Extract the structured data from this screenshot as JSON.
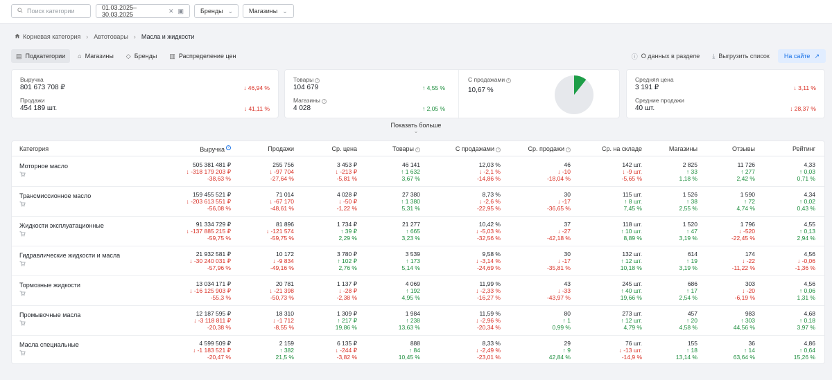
{
  "topbar": {
    "search_placeholder": "Поиск категории",
    "date_range": "01.03.2025–30.03.2025",
    "brands_label": "Бренды",
    "shops_label": "Магазины"
  },
  "breadcrumbs": [
    "Корневая категория",
    "Автотовары",
    "Масла и жидкости"
  ],
  "tabs": [
    "Подкатегории",
    "Магазины",
    "Бренды",
    "Распределение цен"
  ],
  "actions": {
    "about": "О данных в разделе",
    "export": "Выгрузить список",
    "site": "На сайте"
  },
  "cards": {
    "revenue": {
      "label": "Выручка",
      "value": "801 673 708 ₽",
      "delta": "↓ 46,94 %"
    },
    "sales": {
      "label": "Продажи",
      "value": "454 189 шт.",
      "delta": "↓ 41,11 %"
    },
    "goods": {
      "label": "Товары",
      "value": "104 679",
      "delta": "↑ 4,55 %"
    },
    "shops": {
      "label": "Магазины",
      "value": "4 028",
      "delta": "↑ 2,05 %"
    },
    "with_sales": {
      "label": "С продажами",
      "value": "10,67 %",
      "fraction": 0.1067
    },
    "avg_price": {
      "label": "Средняя цена",
      "value": "3 191 ₽",
      "delta": "↓ 3,11 %"
    },
    "avg_sales": {
      "label": "Средние продажи",
      "value": "40 шт.",
      "delta": "↓ 28,37 %"
    }
  },
  "show_more": "Показать больше",
  "table": {
    "headers": [
      "Категория",
      "Выручка",
      "Продажи",
      "Ср. цена",
      "Товары",
      "С продажами",
      "Ср. продажи",
      "Ср. на складе",
      "Магазины",
      "Отзывы",
      "Рейтинг"
    ],
    "rows": [
      {
        "name": "Моторное масло",
        "cells": [
          [
            "505 381 481 ₽",
            "↓ -318 179 203 ₽",
            "-38,63 %",
            "n"
          ],
          [
            "255 756",
            "↓ -97 704",
            "-27,64 %",
            "n"
          ],
          [
            "3 453 ₽",
            "↓ -213 ₽",
            "-5,81 %",
            "n"
          ],
          [
            "46 141",
            "↑ 1 632",
            "3,67 %",
            "p"
          ],
          [
            "12,03 %",
            "↓ -2,1 %",
            "-14,86 %",
            "n"
          ],
          [
            "46",
            "↓ -10",
            "-18,04 %",
            "n"
          ],
          [
            "142 шт.",
            "↓ -9 шт.",
            "-5,65 %",
            "n"
          ],
          [
            "2 825",
            "↑ 33",
            "1,18 %",
            "p"
          ],
          [
            "11 726",
            "↑ 277",
            "2,42 %",
            "p"
          ],
          [
            "4,33",
            "↑ 0,03",
            "0,71 %",
            "p"
          ]
        ]
      },
      {
        "name": "Трансмиссионное масло",
        "cells": [
          [
            "159 455 521 ₽",
            "↓ -203 613 551 ₽",
            "-56,08 %",
            "n"
          ],
          [
            "71 014",
            "↓ -67 170",
            "-48,61 %",
            "n"
          ],
          [
            "4 028 ₽",
            "↓ -50 ₽",
            "-1,22 %",
            "n"
          ],
          [
            "27 380",
            "↑ 1 380",
            "5,31 %",
            "p"
          ],
          [
            "8,73 %",
            "↓ -2,6 %",
            "-22,95 %",
            "n"
          ],
          [
            "30",
            "↓ -17",
            "-36,65 %",
            "n"
          ],
          [
            "115 шт.",
            "↑ 8 шт.",
            "7,45 %",
            "p"
          ],
          [
            "1 526",
            "↑ 38",
            "2,55 %",
            "p"
          ],
          [
            "1 590",
            "↑ 72",
            "4,74 %",
            "p"
          ],
          [
            "4,34",
            "↑ 0,02",
            "0,43 %",
            "p"
          ]
        ]
      },
      {
        "name": "Жидкости эксплуатационные",
        "cells": [
          [
            "91 334 729 ₽",
            "↓ -137 885 215 ₽",
            "-59,75 %",
            "n"
          ],
          [
            "81 896",
            "↓ -121 574",
            "-59,75 %",
            "n"
          ],
          [
            "1 734 ₽",
            "↑ 39 ₽",
            "2,29 %",
            "p"
          ],
          [
            "21 277",
            "↑ 665",
            "3,23 %",
            "p"
          ],
          [
            "10,42 %",
            "↓ -5,03 %",
            "-32,56 %",
            "n"
          ],
          [
            "37",
            "↓ -27",
            "-42,18 %",
            "n"
          ],
          [
            "118 шт.",
            "↑ 10 шт.",
            "8,89 %",
            "p"
          ],
          [
            "1 520",
            "↑ 47",
            "3,19 %",
            "p"
          ],
          [
            "1 796",
            "↓ -520",
            "-22,45 %",
            "n"
          ],
          [
            "4,55",
            "↑ 0,13",
            "2,94 %",
            "p"
          ]
        ]
      },
      {
        "name": "Гидравлические жидкости и масла",
        "cells": [
          [
            "21 932 581 ₽",
            "↓ -30 240 031 ₽",
            "-57,96 %",
            "n"
          ],
          [
            "10 172",
            "↓ -9 834",
            "-49,16 %",
            "n"
          ],
          [
            "3 780 ₽",
            "↑ 102 ₽",
            "2,76 %",
            "p"
          ],
          [
            "3 539",
            "↑ 173",
            "5,14 %",
            "p"
          ],
          [
            "9,58 %",
            "↓ -3,14 %",
            "-24,69 %",
            "n"
          ],
          [
            "30",
            "↓ -17",
            "-35,81 %",
            "n"
          ],
          [
            "132 шт.",
            "↑ 12 шт.",
            "10,18 %",
            "p"
          ],
          [
            "614",
            "↑ 19",
            "3,19 %",
            "p"
          ],
          [
            "174",
            "↓ -22",
            "-11,22 %",
            "n"
          ],
          [
            "4,56",
            "↓ -0,06",
            "-1,36 %",
            "n"
          ]
        ]
      },
      {
        "name": "Тормозные жидкости",
        "cells": [
          [
            "13 034 171 ₽",
            "↓ -16 125 903 ₽",
            "-55,3 %",
            "n"
          ],
          [
            "20 781",
            "↓ -21 398",
            "-50,73 %",
            "n"
          ],
          [
            "1 137 ₽",
            "↓ -28 ₽",
            "-2,38 %",
            "n"
          ],
          [
            "4 069",
            "↑ 192",
            "4,95 %",
            "p"
          ],
          [
            "11,99 %",
            "↓ -2,33 %",
            "-16,27 %",
            "n"
          ],
          [
            "43",
            "↓ -33",
            "-43,97 %",
            "n"
          ],
          [
            "245 шт.",
            "↑ 40 шт.",
            "19,66 %",
            "p"
          ],
          [
            "686",
            "↑ 17",
            "2,54 %",
            "p"
          ],
          [
            "303",
            "↓ -20",
            "-6,19 %",
            "n"
          ],
          [
            "4,56",
            "↑ 0,06",
            "1,31 %",
            "p"
          ]
        ]
      },
      {
        "name": "Промывочные масла",
        "cells": [
          [
            "12 187 595 ₽",
            "↓ -3 118 811 ₽",
            "-20,38 %",
            "n"
          ],
          [
            "18 310",
            "↓ -1 712",
            "-8,55 %",
            "n"
          ],
          [
            "1 309 ₽",
            "↑ 217 ₽",
            "19,86 %",
            "p"
          ],
          [
            "1 984",
            "↑ 238",
            "13,63 %",
            "p"
          ],
          [
            "11,59 %",
            "↓ -2,96 %",
            "-20,34 %",
            "n"
          ],
          [
            "80",
            "↑ 1",
            "0,99 %",
            "p"
          ],
          [
            "273 шт.",
            "↑ 12 шт.",
            "4,79 %",
            "p"
          ],
          [
            "457",
            "↑ 20",
            "4,58 %",
            "p"
          ],
          [
            "983",
            "↑ 303",
            "44,56 %",
            "p"
          ],
          [
            "4,68",
            "↑ 0,18",
            "3,97 %",
            "p"
          ]
        ]
      },
      {
        "name": "Масла специальные",
        "cells": [
          [
            "4 599 509 ₽",
            "↓ -1 183 521 ₽",
            "-20,47 %",
            "n"
          ],
          [
            "2 159",
            "↑ 382",
            "21,5 %",
            "p"
          ],
          [
            "6 135 ₽",
            "↓ -244 ₽",
            "-3,82 %",
            "n"
          ],
          [
            "888",
            "↑ 84",
            "10,45 %",
            "p"
          ],
          [
            "8,33 %",
            "↓ -2,49 %",
            "-23,01 %",
            "n"
          ],
          [
            "29",
            "↑ 9",
            "42,84 %",
            "p"
          ],
          [
            "76 шт.",
            "↓ -13 шт.",
            "-14,9 %",
            "n"
          ],
          [
            "155",
            "↑ 18",
            "13,14 %",
            "p"
          ],
          [
            "36",
            "↑ 14",
            "63,64 %",
            "p"
          ],
          [
            "4,86",
            "↑ 0,64",
            "15,26 %",
            "p"
          ]
        ]
      }
    ]
  }
}
